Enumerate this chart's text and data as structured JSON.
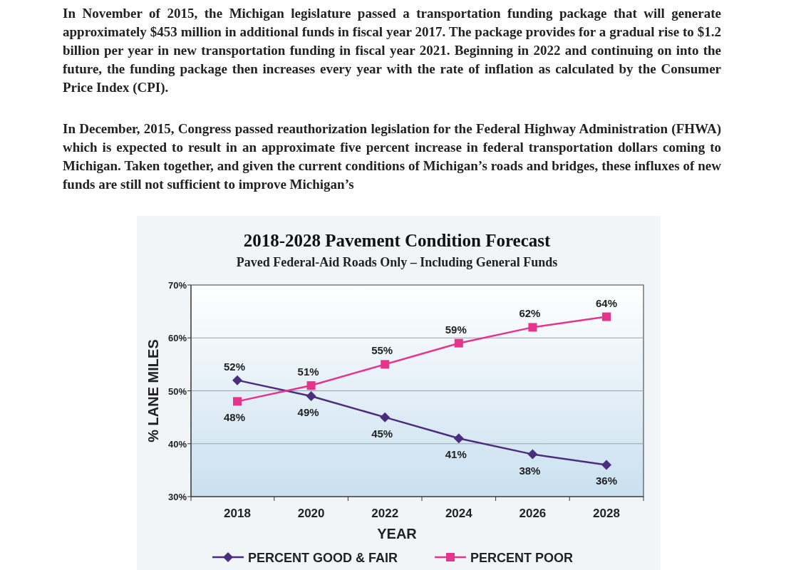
{
  "chart_data": {
    "type": "line",
    "title": "2018-2028 Pavement Condition Forecast",
    "subtitle": "Paved Federal-Aid Roads Only – Including General Funds",
    "annotations": [
      "In November of 2015, the Michigan legislature passed a transportation funding package that will generate approximately $453 million in additional funds in fiscal year 2017. The package provides for a gradual rise to $1.2 billion per year in new transportation funding in fiscal year 2021. Beginning in 2022 and continuing on into the future, the funding package then increases every year with the rate of inflation as calculated by the Consumer Price Index (CPI).",
      "In December, 2015, Congress passed reauthorization legislation for the Federal Highway Administration (FHWA) which is expected to result in an approximate five percent increase in federal transportation dollars coming to Michigan. Taken together, and given the current conditions of Michigan’s roads and bridges, these influxes of new funds are still not sufficient to improve Michigan’s"
    ],
    "xlabel": "YEAR",
    "ylabel": "% LANE MILES",
    "categories": [
      "2018",
      "2020",
      "2022",
      "2024",
      "2026",
      "2028"
    ],
    "ylim": [
      30,
      70
    ],
    "yticks": [
      {
        "value": 30,
        "label": "30%"
      },
      {
        "value": 40,
        "label": "40%"
      },
      {
        "value": 50,
        "label": "50%"
      },
      {
        "value": 60,
        "label": "60%"
      },
      {
        "value": 70,
        "label": "70%"
      }
    ],
    "grid": "y",
    "legend": "bottom",
    "series": [
      {
        "name": "PERCENT GOOD & FAIR",
        "color": "#4b2d7f",
        "marker": "diamond",
        "values": [
          52,
          49,
          45,
          41,
          38,
          36
        ],
        "value_labels": [
          "52%",
          "49%",
          "45%",
          "41%",
          "38%",
          "36%"
        ]
      },
      {
        "name": "PERCENT POOR",
        "color": "#e6348c",
        "marker": "square",
        "values": [
          48,
          51,
          55,
          59,
          62,
          64
        ],
        "value_labels": [
          "48%",
          "51%",
          "55%",
          "59%",
          "62%",
          "64%"
        ]
      }
    ]
  }
}
